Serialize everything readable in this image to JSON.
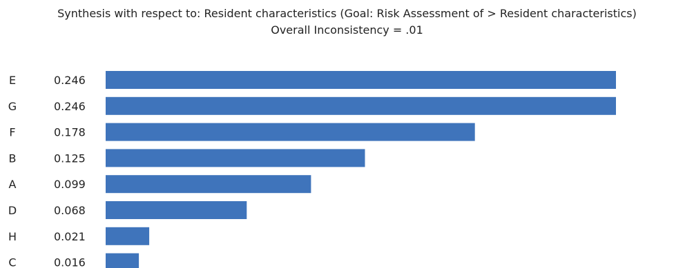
{
  "chart_data": {
    "type": "bar",
    "orientation": "horizontal",
    "title": "Synthesis with respect to: Resident characteristics (Goal: Risk Assessment of > Resident characteristics)",
    "subtitle": "Overall Inconsistency = .01",
    "categories": [
      "E",
      "G",
      "F",
      "B",
      "A",
      "D",
      "H",
      "C"
    ],
    "values": [
      0.246,
      0.246,
      0.178,
      0.125,
      0.099,
      0.068,
      0.021,
      0.016
    ],
    "value_labels": [
      "0.246",
      "0.246",
      "0.178",
      "0.125",
      "0.099",
      "0.068",
      "0.021",
      "0.016"
    ],
    "xlim": [
      0,
      0.246
    ],
    "grid": false,
    "legend": "none",
    "bar_color": "#3f74bb"
  }
}
